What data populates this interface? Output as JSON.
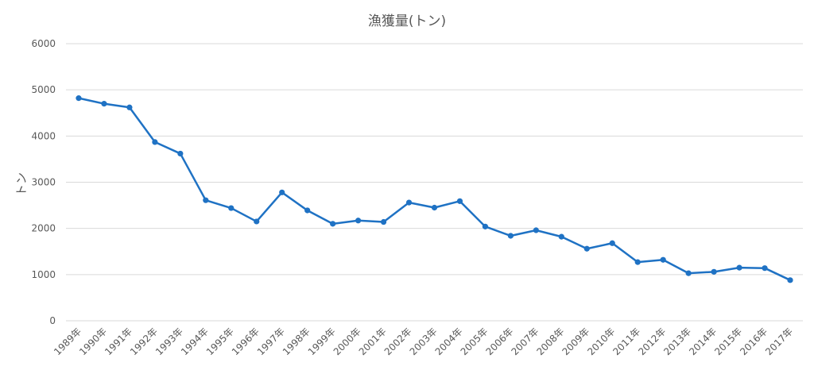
{
  "chart_data": {
    "type": "line",
    "title": "漁獲量(トン)",
    "xlabel": "",
    "ylabel": "トン",
    "ylim": [
      0,
      6000
    ],
    "yticks": [
      0,
      1000,
      2000,
      3000,
      4000,
      5000,
      6000
    ],
    "grid": true,
    "categories": [
      "1989年",
      "1990年",
      "1991年",
      "1992年",
      "1993年",
      "1994年",
      "1995年",
      "1996年",
      "1997年",
      "1998年",
      "1999年",
      "2000年",
      "2001年",
      "2002年",
      "2003年",
      "2004年",
      "2005年",
      "2006年",
      "2007年",
      "2008年",
      "2009年",
      "2010年",
      "2011年",
      "2012年",
      "2013年",
      "2014年",
      "2015年",
      "2016年",
      "2017年"
    ],
    "series": [
      {
        "color": "#1f72c4",
        "values": [
          4820,
          4700,
          4620,
          3870,
          3620,
          2610,
          2440,
          2150,
          2780,
          2390,
          2100,
          2170,
          2140,
          2560,
          2450,
          2590,
          2040,
          1840,
          1960,
          1820,
          1560,
          1680,
          1270,
          1320,
          1030,
          1060,
          1150,
          1140,
          880
        ]
      }
    ]
  }
}
